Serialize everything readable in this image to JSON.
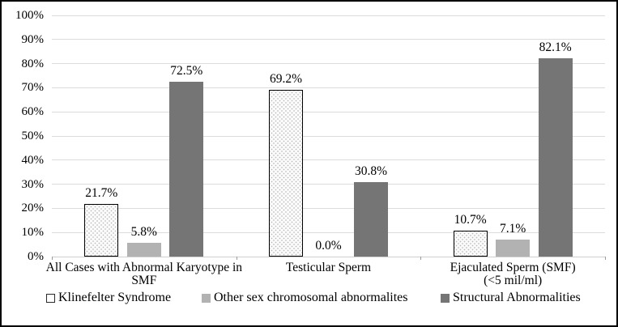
{
  "figure": {
    "background": "#ffffff",
    "border_color": "#000000"
  },
  "chart_data": {
    "type": "bar",
    "title": "",
    "xlabel": "",
    "ylabel": "",
    "categories": [
      "All Cases with Abnormal Karyotype in SMF",
      "Testicular Sperm",
      "Ejaculated Sperm (SMF) (<5 mil/ml)"
    ],
    "category_display_lines": [
      [
        "All Cases with Abnormal Karyotype in",
        "SMF"
      ],
      [
        "Testicular Sperm"
      ],
      [
        "Ejaculated Sperm (SMF)",
        "(<5 mil/ml)"
      ]
    ],
    "series": [
      {
        "name": "Klinefelter Syndrome",
        "values": [
          21.7,
          69.2,
          10.7
        ],
        "data_labels": [
          "21.7%",
          "69.2%",
          "10.7%"
        ],
        "fill_style": "dotted-pattern",
        "fill_color": "#fbfbfb",
        "border_color": "#000000"
      },
      {
        "name": "Other sex chromosomal abnormalites",
        "values": [
          5.8,
          0.0,
          7.1
        ],
        "data_labels": [
          "5.8%",
          "0.0%",
          "7.1%"
        ],
        "fill_style": "solid",
        "fill_color": "#b2b2b2"
      },
      {
        "name": "Structural Abnormalities",
        "values": [
          72.5,
          30.8,
          82.1
        ],
        "data_labels": [
          "72.5%",
          "30.8%",
          "82.1%"
        ],
        "fill_style": "solid",
        "fill_color": "#757575"
      }
    ],
    "y_axis": {
      "min": 0,
      "max": 100,
      "step": 10,
      "tick_labels": [
        "0%",
        "10%",
        "20%",
        "30%",
        "40%",
        "50%",
        "60%",
        "70%",
        "80%",
        "90%",
        "100%"
      ]
    },
    "grid": true,
    "gridline_color": "#dcdcdc",
    "legend_position": "bottom"
  }
}
